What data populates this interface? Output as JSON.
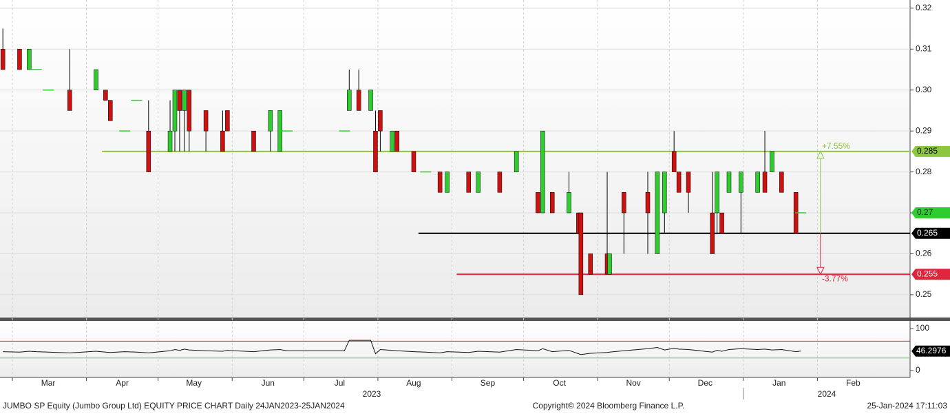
{
  "chart_data": [
    {
      "type": "candlestick",
      "xlim": [
        30.8,
        411.8
      ],
      "ylim": [
        0.2446,
        0.322
      ],
      "yticks": [
        0.25,
        0.26,
        0.27,
        0.28,
        0.29,
        {
          "value": 0.3,
          "label": "0.30"
        },
        0.31,
        0.32
      ],
      "xticks": [
        {
          "value": 36,
          "label": "Mar"
        },
        {
          "value": 67,
          "label": "Apr"
        },
        {
          "value": 97,
          "label": "May"
        },
        {
          "value": 128,
          "label": "Jun"
        },
        {
          "value": 158,
          "label": "Jul"
        },
        {
          "value": 189,
          "label": "Aug"
        },
        {
          "value": 220,
          "label": "Sep"
        },
        {
          "value": 250,
          "label": "Oct"
        },
        {
          "value": 281,
          "label": "Nov"
        },
        {
          "value": 311,
          "label": "Dec"
        },
        {
          "value": 342,
          "label": "Jan"
        },
        {
          "value": 373,
          "label": "Feb"
        }
      ],
      "years": [
        "2023",
        "2024"
      ],
      "up_color": "#2ecc2e",
      "down_color": "#cc1111",
      "grid": true,
      "x": [
        32,
        39,
        43,
        46,
        51,
        60,
        71,
        75,
        77,
        83,
        88,
        93,
        102,
        104,
        106,
        108,
        110,
        117,
        124,
        126,
        137,
        144,
        148,
        151,
        175,
        177,
        181,
        186,
        188,
        190,
        195,
        197,
        204,
        209,
        215,
        218,
        227,
        231,
        240,
        247,
        256,
        258,
        262,
        269,
        273,
        274,
        278,
        285,
        286,
        292,
        302,
        306,
        309,
        313,
        315,
        319,
        329,
        331,
        333,
        336,
        341,
        348,
        351,
        354,
        358,
        364,
        366
      ],
      "open": [
        0.31,
        0.31,
        0.305,
        0.305,
        0.3,
        0.3,
        0.3,
        0.3,
        0.2975,
        0.29,
        0.2975,
        0.29,
        0.285,
        0.29,
        0.3,
        0.295,
        0.3,
        0.295,
        0.29,
        0.295,
        0.29,
        0.29,
        0.285,
        0.29,
        0.29,
        0.295,
        0.3,
        0.295,
        0.29,
        0.295,
        0.285,
        0.29,
        0.285,
        0.28,
        0.28,
        0.275,
        0.28,
        0.275,
        0.28,
        0.28,
        0.275,
        0.27,
        0.275,
        0.27,
        0.27,
        0.27,
        0.26,
        0.26,
        0.255,
        0.275,
        0.275,
        0.26,
        0.27,
        0.285,
        0.28,
        0.28,
        0.27,
        0.27,
        0.27,
        0.275,
        0.275,
        0.275,
        0.28,
        0.28,
        0.28,
        0.275,
        0.27
      ],
      "high": [
        0.315,
        0.31,
        0.31,
        0.305,
        0.3,
        0.31,
        0.305,
        0.3,
        0.2975,
        0.29,
        0.2975,
        0.2975,
        0.2975,
        0.3,
        0.3,
        0.3,
        0.3,
        0.295,
        0.295,
        0.295,
        0.29,
        0.295,
        0.295,
        0.29,
        0.29,
        0.305,
        0.305,
        0.3,
        0.295,
        0.295,
        0.29,
        0.29,
        0.285,
        0.28,
        0.28,
        0.28,
        0.28,
        0.28,
        0.28,
        0.285,
        0.275,
        0.29,
        0.275,
        0.28,
        0.27,
        0.27,
        0.26,
        0.28,
        0.26,
        0.275,
        0.28,
        0.28,
        0.28,
        0.29,
        0.28,
        0.28,
        0.28,
        0.28,
        0.27,
        0.28,
        0.28,
        0.28,
        0.29,
        0.285,
        0.28,
        0.275,
        0.27
      ],
      "low": [
        0.305,
        0.305,
        0.305,
        0.305,
        0.3,
        0.295,
        0.3,
        0.2975,
        0.2925,
        0.29,
        0.2975,
        0.28,
        0.285,
        0.285,
        0.285,
        0.285,
        0.285,
        0.285,
        0.285,
        0.29,
        0.285,
        0.285,
        0.285,
        0.29,
        0.29,
        0.295,
        0.295,
        0.295,
        0.28,
        0.285,
        0.285,
        0.285,
        0.28,
        0.28,
        0.275,
        0.275,
        0.275,
        0.275,
        0.275,
        0.28,
        0.27,
        0.27,
        0.27,
        0.27,
        0.265,
        0.25,
        0.255,
        0.255,
        0.255,
        0.26,
        0.26,
        0.26,
        0.265,
        0.28,
        0.275,
        0.27,
        0.26,
        0.265,
        0.265,
        0.275,
        0.265,
        0.275,
        0.275,
        0.28,
        0.275,
        0.265,
        0.27
      ],
      "close": [
        0.305,
        0.305,
        0.31,
        0.305,
        0.3,
        0.295,
        0.305,
        0.2975,
        0.2925,
        0.29,
        0.2975,
        0.28,
        0.29,
        0.3,
        0.295,
        0.3,
        0.29,
        0.29,
        0.285,
        0.29,
        0.285,
        0.295,
        0.295,
        0.29,
        0.29,
        0.3,
        0.295,
        0.3,
        0.28,
        0.29,
        0.29,
        0.285,
        0.28,
        0.28,
        0.275,
        0.28,
        0.275,
        0.28,
        0.275,
        0.285,
        0.27,
        0.29,
        0.27,
        0.275,
        0.265,
        0.25,
        0.255,
        0.255,
        0.26,
        0.27,
        0.27,
        0.28,
        0.28,
        0.28,
        0.275,
        0.275,
        0.26,
        0.28,
        0.265,
        0.28,
        0.28,
        0.28,
        0.275,
        0.285,
        0.275,
        0.265,
        0.27
      ],
      "last_color": "#2ecc2e",
      "levels": [
        {
          "value": 0.285,
          "color": "#8dc63f",
          "start": 73.5
        },
        {
          "value": 0.265,
          "color": "#000000",
          "start": 206
        },
        {
          "value": 0.255,
          "color": "#e0243c",
          "start": 222
        }
      ],
      "annotations": [
        {
          "value": 7.55,
          "label": "+7.55%",
          "color": "#8dc63f"
        },
        {
          "value": -3.77,
          "label": "-3.77%",
          "color": "#e0243c"
        }
      ]
    },
    {
      "type": "line",
      "xlim": [
        30.8,
        411.8
      ],
      "ylim": [
        -16.4,
        114.8
      ],
      "yticks": [
        0,
        100
      ],
      "color": "#111111",
      "upper": 70,
      "lower": 30,
      "x": [
        32,
        39,
        43,
        46,
        51,
        60,
        71,
        75,
        77,
        83,
        88,
        93,
        102,
        104,
        106,
        108,
        110,
        117,
        124,
        126,
        137,
        144,
        148,
        151,
        175,
        177,
        181,
        186,
        188,
        190,
        195,
        197,
        204,
        209,
        215,
        218,
        227,
        231,
        240,
        247,
        256,
        258,
        262,
        269,
        273,
        274,
        278,
        285,
        286,
        292,
        302,
        306,
        309,
        313,
        315,
        319,
        329,
        331,
        333,
        336,
        341,
        348,
        351,
        354,
        358,
        364,
        366
      ],
      "values": [
        45,
        44,
        46,
        45,
        44,
        42,
        46,
        44,
        43,
        45,
        44,
        42,
        47,
        50,
        48,
        51,
        49,
        47,
        46,
        48,
        45,
        49,
        50,
        47,
        47,
        72,
        72,
        72,
        40,
        50,
        48,
        47,
        45,
        44,
        42,
        45,
        43,
        46,
        44,
        50,
        47,
        52,
        45,
        48,
        40,
        38,
        41,
        43,
        44,
        47,
        52,
        55,
        49,
        53,
        51,
        50,
        44,
        48,
        46,
        50,
        52,
        50,
        51,
        49,
        50,
        45,
        46.2976
      ]
    }
  ],
  "footer": {
    "left": "JUMBO SP Equity (Jumbo Group Ltd) EQUITY PRICE CHART  Daily 24JAN2023-25JAN2024",
    "center": "Copyright© 2024 Bloomberg Finance L.P.",
    "right": "25-Jan-2024 17:11:03"
  }
}
